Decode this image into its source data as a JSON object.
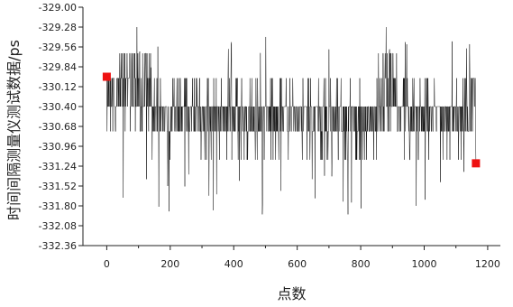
{
  "chart_data": {
    "type": "line",
    "title": "",
    "xlabel": "点数",
    "ylabel": "时间间隔测量仪测试数据/ps",
    "xlim": [
      -75,
      1240
    ],
    "ylim": [
      -332.36,
      -329.0
    ],
    "x_ticks": [
      0,
      200,
      400,
      600,
      800,
      1000,
      1200
    ],
    "y_ticks": [
      -329.0,
      -329.28,
      -329.56,
      -329.84,
      -330.12,
      -330.4,
      -330.68,
      -330.96,
      -331.24,
      -331.52,
      -331.8,
      -332.08,
      -332.36
    ],
    "x_tick_labels": [
      "0",
      "200",
      "400",
      "600",
      "800",
      "1000",
      "1200"
    ],
    "y_tick_labels": [
      "-329.00",
      "-329.28",
      "-329.56",
      "-329.84",
      "-330.12",
      "-330.40",
      "-330.68",
      "-330.96",
      "-331.24",
      "-331.52",
      "-331.80",
      "-332.08",
      "-332.36"
    ],
    "grid": false,
    "legend": "none",
    "series": [
      {
        "color": "#000000",
        "n_points": 1164,
        "levels": [
          -329.65,
          -330.0,
          -330.4,
          -330.75,
          -331.15
        ],
        "x_start": 0,
        "x_end": 1163
      }
    ],
    "markers": [
      {
        "x": 0,
        "y": -329.98,
        "color": "#ee1111",
        "shape": "square"
      },
      {
        "x": 1163,
        "y": -331.2,
        "color": "#ee1111",
        "shape": "square"
      }
    ]
  }
}
